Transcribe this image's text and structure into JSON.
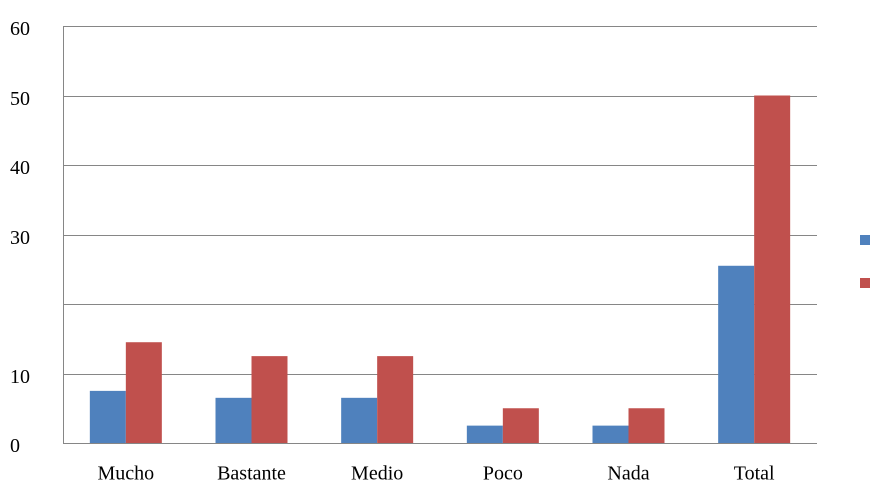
{
  "chart_data": {
    "type": "bar",
    "categories": [
      "Mucho",
      "Bastante",
      "Medio",
      "Poco",
      "Nada",
      "Total"
    ],
    "series": [
      {
        "color": "#4f81bd",
        "values": [
          7.5,
          6.5,
          6.5,
          2.5,
          2.5,
          25.5
        ]
      },
      {
        "color": "#c0504d",
        "values": [
          14.5,
          12.5,
          12.5,
          5,
          5,
          50
        ]
      }
    ],
    "ylim": [
      0,
      60
    ],
    "yticks": [
      0,
      10,
      {
        "value": 20,
        "label": null
      },
      30,
      40,
      50,
      60
    ],
    "grid": true
  }
}
